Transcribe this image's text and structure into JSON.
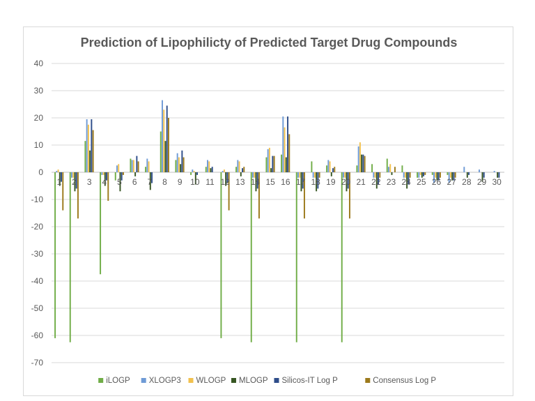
{
  "chart_data": {
    "type": "bar",
    "title": "Prediction of Lipophilicty of Predicted Target Drug Compounds",
    "xlabel": "",
    "ylabel": "",
    "ylim": [
      -70,
      40
    ],
    "yticks": [
      40,
      30,
      20,
      10,
      0,
      -10,
      -20,
      -30,
      -40,
      -50,
      -60,
      -70
    ],
    "grid": true,
    "legend_position": "bottom",
    "categories": [
      "1",
      "2",
      "3",
      "4",
      "5",
      "6",
      "7",
      "8",
      "9",
      "10",
      "11",
      "12",
      "13",
      "14",
      "15",
      "16",
      "17",
      "18",
      "19",
      "20",
      "21",
      "22",
      "23",
      "24",
      "25",
      "26",
      "27",
      "28",
      "29",
      "30"
    ],
    "series": [
      {
        "name": "iLOGP",
        "color": "#70ad47",
        "values": [
          -61,
          -62.5,
          11.5,
          -37.5,
          -3,
          5,
          2,
          15,
          4.5,
          -1,
          2,
          -61,
          2,
          -62.5,
          5.5,
          6.5,
          -62.5,
          4,
          2.5,
          -62.5,
          2.5,
          3,
          5,
          2.5,
          -2,
          -1,
          -1,
          0,
          0,
          0
        ]
      },
      {
        "name": "XLOGP3",
        "color": "#6f9bd6",
        "values": [
          0.5,
          -2,
          19.5,
          -1,
          2.5,
          4.5,
          5,
          26.5,
          7,
          1,
          4.5,
          0.5,
          4.5,
          -2,
          8.5,
          20.5,
          -2,
          -2,
          4.5,
          -2,
          9.5,
          -2,
          2,
          -2,
          -2,
          -4,
          -4,
          2,
          1,
          0.5
        ]
      },
      {
        "name": "WLOGP",
        "color": "#f2c14e",
        "values": [
          1,
          -2,
          17.5,
          -1,
          3,
          4.5,
          4,
          23,
          5.5,
          0.5,
          4,
          1,
          4,
          -2,
          9,
          16.5,
          -2,
          -2,
          4,
          -2,
          11,
          -2,
          3,
          -2,
          -1,
          -2,
          -2,
          0,
          0,
          0
        ]
      },
      {
        "name": "MLOGP",
        "color": "#375623",
        "values": [
          -5,
          -7,
          8,
          -5,
          -7,
          -1.5,
          -6.5,
          11.5,
          3,
          -4.5,
          1.5,
          -5,
          -1.5,
          -7,
          1.5,
          5.5,
          -7,
          -7,
          -1.5,
          -7,
          6.5,
          -6,
          -1,
          -6,
          -2,
          -3,
          -3,
          -2,
          -3.5,
          -2
        ]
      },
      {
        "name": "Silicos-IT Log P",
        "color": "#2e4d8a",
        "values": [
          -3.5,
          -6,
          19.5,
          -3,
          -3,
          6,
          -4,
          24.5,
          8,
          -1,
          2,
          -4,
          1.5,
          -6,
          6,
          20.5,
          -6,
          -6,
          1.5,
          -6,
          6.5,
          -4.5,
          0,
          -4.5,
          -1.5,
          -3,
          -3,
          -1,
          -2,
          -2
        ]
      },
      {
        "name": "Consensus Log P",
        "color": "#9c7a1c",
        "values": [
          -14,
          -17,
          15.5,
          -10.5,
          -1,
          4,
          0,
          20,
          5.5,
          0,
          0,
          -14,
          2,
          -17,
          6,
          14,
          -17,
          -2,
          2,
          -17,
          6,
          -2,
          2,
          -2,
          -1,
          -2,
          -2,
          0,
          0,
          0
        ]
      }
    ]
  }
}
